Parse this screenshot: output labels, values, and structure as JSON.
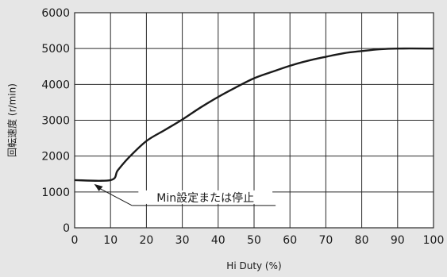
{
  "chart_data": {
    "type": "line",
    "xlabel": "Hi Duty (%)",
    "ylabel": "回転速度 (r/min)",
    "xlim": [
      0,
      100
    ],
    "ylim": [
      0,
      6000
    ],
    "x_ticks": [
      0,
      10,
      20,
      30,
      40,
      50,
      60,
      70,
      80,
      90,
      100
    ],
    "y_ticks": [
      0,
      1000,
      2000,
      3000,
      4000,
      5000,
      6000
    ],
    "grid": true,
    "series": [
      {
        "x": [
          0,
          10,
          12,
          15,
          20,
          25,
          30,
          35,
          40,
          45,
          50,
          55,
          60,
          65,
          70,
          75,
          80,
          85,
          90,
          100
        ],
        "values": [
          1330,
          1330,
          1600,
          1950,
          2420,
          2720,
          3020,
          3350,
          3650,
          3920,
          4170,
          4350,
          4520,
          4660,
          4770,
          4870,
          4930,
          4980,
          5000,
          5000
        ]
      }
    ],
    "annotation": {
      "text": "Min設定または停止",
      "x": 5,
      "y": 1330
    },
    "colors": {
      "line": "#1a1a1a",
      "grid": "#2a2a2a",
      "plot_background": "#ffffff",
      "page_background": "#e6e6e6"
    }
  }
}
